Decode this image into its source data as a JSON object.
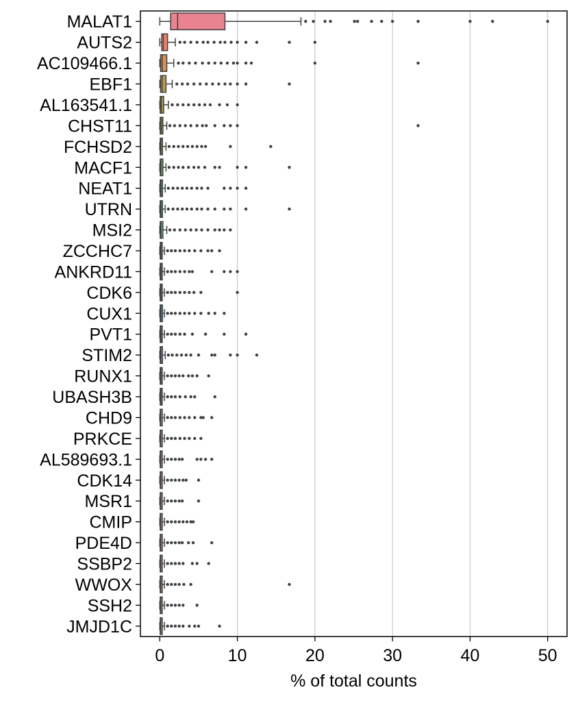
{
  "chart_data": {
    "type": "boxplot",
    "title": "",
    "xlabel": "% of total counts",
    "ylabel": "",
    "xlim": [
      -2.5,
      52.5
    ],
    "xticks": [
      0,
      10,
      20,
      30,
      40,
      50
    ],
    "grid": "vertical",
    "legend": "none",
    "genes": [
      {
        "name": "MALAT1",
        "color": "#ea8390",
        "q1": 1.4,
        "median": 2.3,
        "q3": 8.4,
        "whisker_low": 0.0,
        "whisker_high": 18.2,
        "outliers": [
          18.8,
          19.8,
          21.3,
          22.0,
          25.1,
          25.5,
          27.3,
          28.6,
          30.0,
          33.3,
          40.0,
          42.9,
          50.0
        ]
      },
      {
        "name": "AUTS2",
        "color": "#e6856e",
        "q1": 0.25,
        "median": 0.45,
        "q3": 1.0,
        "whisker_low": 0.0,
        "whisker_high": 2.0,
        "outliers": [
          2.6,
          3.2,
          4.0,
          4.8,
          5.6,
          6.2,
          7.0,
          7.8,
          8.4,
          9.2,
          10.0,
          11.1,
          12.5,
          16.7,
          20.0
        ]
      },
      {
        "name": "AC109466.1",
        "color": "#d7915a",
        "q1": 0.1,
        "median": 0.3,
        "q3": 0.9,
        "whisker_low": 0.0,
        "whisker_high": 1.8,
        "outliers": [
          2.4,
          3.0,
          3.8,
          4.6,
          5.5,
          6.3,
          7.1,
          7.9,
          8.7,
          9.5,
          10.0,
          11.1,
          11.8,
          20.0,
          33.3
        ]
      },
      {
        "name": "EBF1",
        "color": "#c49a55",
        "q1": 0.1,
        "median": 0.3,
        "q3": 0.8,
        "whisker_low": 0.0,
        "whisker_high": 1.6,
        "outliers": [
          2.2,
          2.9,
          3.6,
          4.4,
          5.2,
          6.0,
          6.8,
          7.6,
          8.4,
          9.1,
          10.0,
          11.1,
          16.7
        ]
      },
      {
        "name": "AL163541.1",
        "color": "#b4a155",
        "q1": 0.05,
        "median": 0.2,
        "q3": 0.5,
        "whisker_low": 0.0,
        "whisker_high": 1.1,
        "outliers": [
          1.6,
          2.3,
          3.0,
          3.7,
          4.4,
          5.1,
          5.8,
          6.5,
          7.7,
          8.7,
          10.0
        ]
      },
      {
        "name": "CHST11",
        "color": "#a1a753",
        "q1": 0.05,
        "median": 0.2,
        "q3": 0.4,
        "whisker_low": 0.0,
        "whisker_high": 0.9,
        "outliers": [
          1.3,
          1.9,
          2.6,
          3.3,
          4.0,
          4.8,
          5.5,
          6.0,
          7.1,
          8.3,
          9.1,
          10.0,
          33.3
        ]
      },
      {
        "name": "FCHSD2",
        "color": "#8aad52",
        "q1": 0.05,
        "median": 0.15,
        "q3": 0.35,
        "whisker_low": 0.0,
        "whisker_high": 0.8,
        "outliers": [
          1.2,
          1.8,
          2.4,
          3.0,
          3.6,
          4.2,
          4.8,
          5.4,
          5.9,
          9.1,
          14.3
        ]
      },
      {
        "name": "MACF1",
        "color": "#6db55a",
        "q1": 0.05,
        "median": 0.15,
        "q3": 0.4,
        "whisker_low": 0.0,
        "whisker_high": 0.8,
        "outliers": [
          1.2,
          1.8,
          2.4,
          3.0,
          3.7,
          4.4,
          5.0,
          5.8,
          7.1,
          7.7,
          10.0,
          11.1,
          16.7
        ]
      },
      {
        "name": "NEAT1",
        "color": "#53b876",
        "q1": 0.05,
        "median": 0.15,
        "q3": 0.35,
        "whisker_low": 0.0,
        "whisker_high": 0.7,
        "outliers": [
          1.1,
          1.7,
          2.3,
          2.9,
          3.5,
          4.1,
          4.8,
          5.4,
          6.2,
          8.3,
          9.1,
          10.0,
          11.1
        ]
      },
      {
        "name": "UTRN",
        "color": "#52b78f",
        "q1": 0.05,
        "median": 0.15,
        "q3": 0.35,
        "whisker_low": 0.0,
        "whisker_high": 0.7,
        "outliers": [
          1.1,
          1.7,
          2.3,
          2.9,
          3.5,
          4.1,
          4.8,
          5.4,
          6.2,
          7.1,
          8.3,
          9.1,
          11.1,
          16.7
        ]
      },
      {
        "name": "MSI2",
        "color": "#52b59f",
        "q1": 0.05,
        "median": 0.15,
        "q3": 0.4,
        "whisker_low": 0.0,
        "whisker_high": 0.9,
        "outliers": [
          1.3,
          1.9,
          2.6,
          3.3,
          4.0,
          4.7,
          5.4,
          6.2,
          7.1,
          7.7,
          8.3,
          9.1
        ]
      },
      {
        "name": "ZCCHC7",
        "color": "#52b4ad",
        "q1": 0.05,
        "median": 0.15,
        "q3": 0.3,
        "whisker_low": 0.0,
        "whisker_high": 0.6,
        "outliers": [
          1.0,
          1.5,
          2.0,
          2.6,
          3.2,
          3.8,
          4.5,
          5.3,
          6.2,
          6.7,
          7.7
        ]
      },
      {
        "name": "ANKRD11",
        "color": "#53b2bb",
        "q1": 0.05,
        "median": 0.15,
        "q3": 0.3,
        "whisker_low": 0.0,
        "whisker_high": 0.6,
        "outliers": [
          1.0,
          1.5,
          2.0,
          2.6,
          3.2,
          3.8,
          4.2,
          6.7,
          8.3,
          9.1,
          10.0
        ]
      },
      {
        "name": "CDK6",
        "color": "#55b1c9",
        "q1": 0.05,
        "median": 0.15,
        "q3": 0.3,
        "whisker_low": 0.0,
        "whisker_high": 0.6,
        "outliers": [
          1.0,
          1.5,
          2.0,
          2.6,
          3.2,
          3.8,
          4.4,
          5.3,
          10.0
        ]
      },
      {
        "name": "CUX1",
        "color": "#5aaed9",
        "q1": 0.05,
        "median": 0.15,
        "q3": 0.35,
        "whisker_low": 0.0,
        "whisker_high": 0.6,
        "outliers": [
          1.0,
          1.5,
          2.0,
          2.6,
          3.2,
          3.8,
          4.5,
          5.3,
          6.3,
          7.1,
          8.3
        ]
      },
      {
        "name": "PVT1",
        "color": "#73a8e6",
        "q1": 0.05,
        "median": 0.15,
        "q3": 0.3,
        "whisker_low": 0.0,
        "whisker_high": 0.6,
        "outliers": [
          1.0,
          1.5,
          2.0,
          2.6,
          3.2,
          4.2,
          5.9,
          8.3,
          11.1
        ]
      },
      {
        "name": "STIM2",
        "color": "#92a0ef",
        "q1": 0.05,
        "median": 0.15,
        "q3": 0.35,
        "whisker_low": 0.0,
        "whisker_high": 0.7,
        "outliers": [
          1.1,
          1.6,
          2.2,
          2.8,
          3.4,
          4.0,
          5.0,
          6.7,
          7.1,
          9.1,
          10.0,
          12.5
        ]
      },
      {
        "name": "RUNX1",
        "color": "#aa97f1",
        "q1": 0.05,
        "median": 0.15,
        "q3": 0.3,
        "whisker_low": 0.0,
        "whisker_high": 0.6,
        "outliers": [
          1.0,
          1.5,
          2.0,
          2.5,
          3.0,
          3.7,
          4.2,
          4.8,
          6.3
        ]
      },
      {
        "name": "UBASH3B",
        "color": "#c08ded",
        "q1": 0.05,
        "median": 0.15,
        "q3": 0.3,
        "whisker_low": 0.0,
        "whisker_high": 0.6,
        "outliers": [
          1.0,
          1.5,
          2.0,
          2.6,
          3.3,
          4.0,
          4.5,
          7.1
        ]
      },
      {
        "name": "CHD9",
        "color": "#d385e6",
        "q1": 0.05,
        "median": 0.12,
        "q3": 0.3,
        "whisker_low": 0.0,
        "whisker_high": 0.6,
        "outliers": [
          1.0,
          1.5,
          2.0,
          2.6,
          3.2,
          3.8,
          4.5,
          5.3,
          5.6,
          6.7
        ]
      },
      {
        "name": "PRKCE",
        "color": "#e07ed8",
        "q1": 0.05,
        "median": 0.12,
        "q3": 0.3,
        "whisker_low": 0.0,
        "whisker_high": 0.6,
        "outliers": [
          1.0,
          1.5,
          2.0,
          2.6,
          3.2,
          3.8,
          4.5,
          5.3
        ]
      },
      {
        "name": "AL589693.1",
        "color": "#e57dc8",
        "q1": 0.05,
        "median": 0.12,
        "q3": 0.3,
        "whisker_low": 0.0,
        "whisker_high": 0.6,
        "outliers": [
          1.0,
          1.5,
          2.0,
          2.5,
          2.9,
          4.8,
          5.3,
          5.9,
          6.7
        ]
      },
      {
        "name": "CDK14",
        "color": "#e780b7",
        "q1": 0.05,
        "median": 0.12,
        "q3": 0.3,
        "whisker_low": 0.0,
        "whisker_high": 0.6,
        "outliers": [
          1.0,
          1.5,
          2.0,
          2.5,
          3.0,
          3.4,
          5.0
        ]
      },
      {
        "name": "MSR1",
        "color": "#e884a7",
        "q1": 0.05,
        "median": 0.12,
        "q3": 0.3,
        "whisker_low": 0.0,
        "whisker_high": 0.6,
        "outliers": [
          1.0,
          1.5,
          2.0,
          2.5,
          2.9,
          5.0
        ]
      },
      {
        "name": "CMIP",
        "color": "#e88898",
        "q1": 0.05,
        "median": 0.12,
        "q3": 0.3,
        "whisker_low": 0.0,
        "whisker_high": 0.6,
        "outliers": [
          1.0,
          1.5,
          2.0,
          2.5,
          3.0,
          3.5,
          4.0,
          4.3
        ]
      },
      {
        "name": "PDE4D",
        "color": "#ea8390",
        "q1": 0.05,
        "median": 0.12,
        "q3": 0.3,
        "whisker_low": 0.0,
        "whisker_high": 0.6,
        "outliers": [
          1.0,
          1.5,
          2.0,
          2.5,
          2.9,
          3.7,
          4.3,
          6.7
        ]
      },
      {
        "name": "SSBP2",
        "color": "#e6856e",
        "q1": 0.05,
        "median": 0.12,
        "q3": 0.3,
        "whisker_low": 0.0,
        "whisker_high": 0.6,
        "outliers": [
          1.0,
          1.5,
          2.0,
          2.5,
          3.0,
          4.2,
          4.8,
          6.3
        ]
      },
      {
        "name": "WWOX",
        "color": "#d7915a",
        "q1": 0.05,
        "median": 0.12,
        "q3": 0.3,
        "whisker_low": 0.0,
        "whisker_high": 0.6,
        "outliers": [
          1.0,
          1.5,
          2.0,
          2.5,
          3.1,
          4.0,
          16.7
        ]
      },
      {
        "name": "SSH2",
        "color": "#c49a55",
        "q1": 0.05,
        "median": 0.12,
        "q3": 0.3,
        "whisker_low": 0.0,
        "whisker_high": 0.6,
        "outliers": [
          1.0,
          1.5,
          2.0,
          2.5,
          3.0,
          4.8
        ]
      },
      {
        "name": "JMJD1C",
        "color": "#b4a155",
        "q1": 0.05,
        "median": 0.12,
        "q3": 0.3,
        "whisker_low": 0.0,
        "whisker_high": 0.6,
        "outliers": [
          1.0,
          1.5,
          2.0,
          2.5,
          3.0,
          3.8,
          4.5,
          5.0,
          7.7
        ]
      }
    ]
  }
}
